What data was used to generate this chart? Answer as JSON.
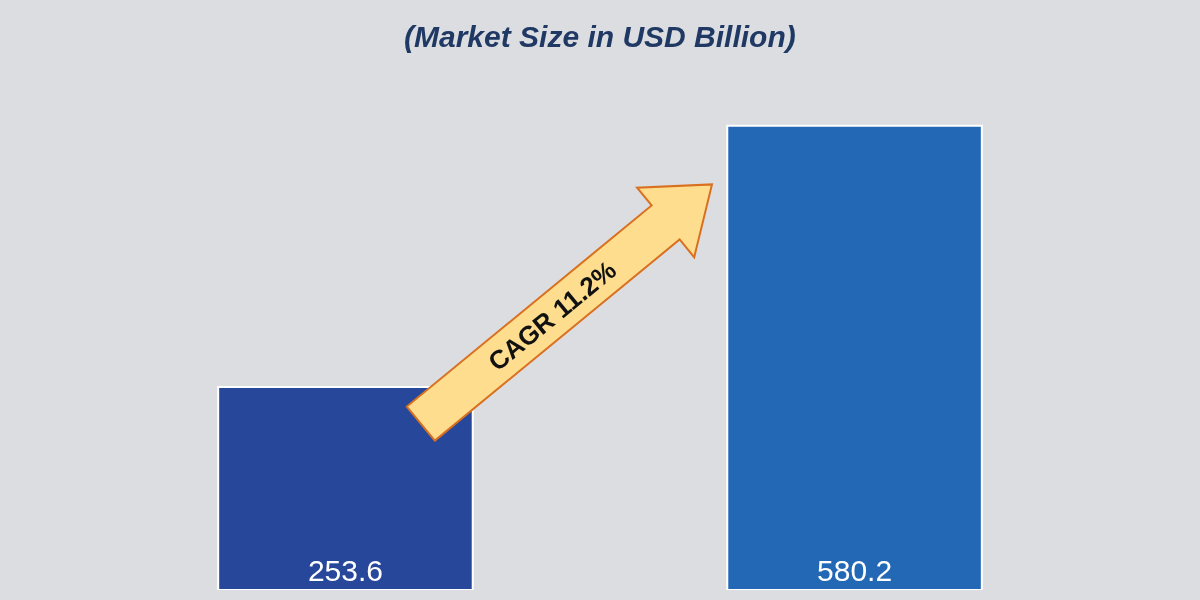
{
  "chart_data": {
    "type": "bar",
    "subtitle": "(Market Size in USD Billion)",
    "categories": [
      null,
      null
    ],
    "values": [
      253.6,
      580.2
    ],
    "colors": [
      "#27489a",
      "#2368b5"
    ],
    "data_labels": true,
    "annotations": [
      "CAGR 11.2%"
    ]
  }
}
